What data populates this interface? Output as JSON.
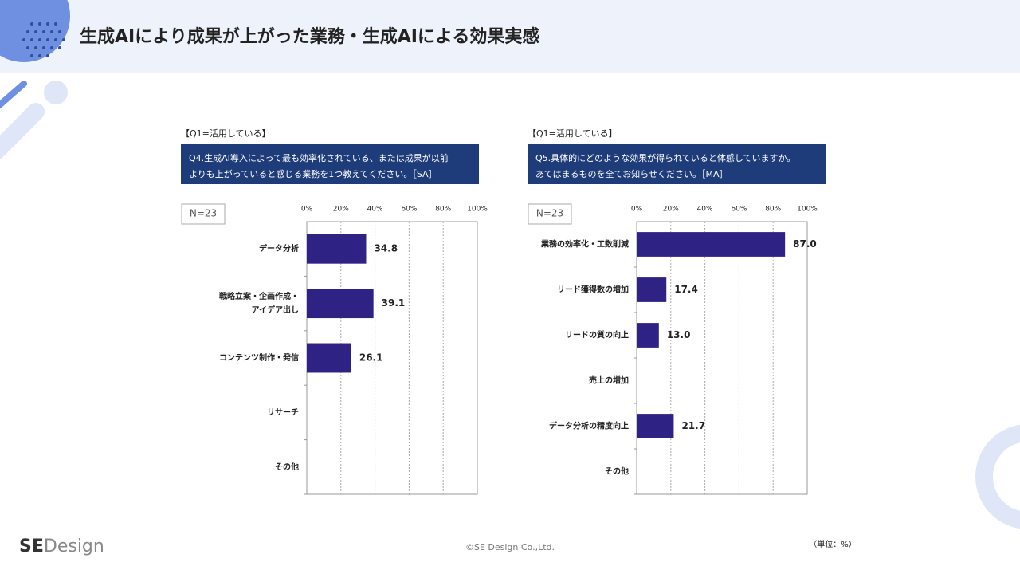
{
  "header": {
    "title": "生成AIにより成果が上がった業務・生成AIによる効果実感"
  },
  "footer": {
    "logo_bold": "SE",
    "logo_light": "Design",
    "copyright": "©SE Design Co.,Ltd.",
    "unit": "（単位：%）"
  },
  "chart_data": [
    {
      "type": "hbar",
      "subtitle": "【Q1=活用している】",
      "question": "Q4.生成AI導入によって最も効率化されている、または成果が以前\nよりも上がっていると感じる業務を1つ教えてください。［SA］",
      "sample": "N=23",
      "categories": [
        "データ分析",
        "戦略立案・企画作成・\nアイデア出し",
        "コンテンツ制作・発信",
        "リサーチ",
        "その他"
      ],
      "values": [
        34.8,
        39.1,
        26.1,
        null,
        null
      ],
      "color": "#2e2384",
      "xlim": [
        0,
        100
      ],
      "xticks": [
        {
          "value": 0,
          "label": "0%"
        },
        {
          "value": 20,
          "label": "20%"
        },
        {
          "value": 40,
          "label": "40%"
        },
        {
          "value": 60,
          "label": "60%"
        },
        {
          "value": 80,
          "label": "80%"
        },
        {
          "value": 100,
          "label": "100%"
        }
      ],
      "grid": true
    },
    {
      "type": "hbar",
      "subtitle": "【Q1=活用している】",
      "question": "Q5.具体的にどのような効果が得られていると体感していますか。\nあてはまるものを全てお知らせください。［MA］",
      "sample": "N=23",
      "categories": [
        "業務の効率化・工数削減",
        "リード獲得数の増加",
        "リードの質の向上",
        "売上の増加",
        "データ分析の精度向上",
        "その他"
      ],
      "values": [
        87.0,
        17.4,
        13.0,
        null,
        21.7,
        null
      ],
      "value_labels": [
        "87.0",
        "17.4",
        "13.0",
        null,
        "21.7",
        null
      ],
      "color": "#2e2384",
      "xlim": [
        0,
        100
      ],
      "xticks": [
        {
          "value": 0,
          "label": "0%"
        },
        {
          "value": 20,
          "label": "20%"
        },
        {
          "value": 40,
          "label": "40%"
        },
        {
          "value": 60,
          "label": "60%"
        },
        {
          "value": 80,
          "label": "80%"
        },
        {
          "value": 100,
          "label": "100%"
        }
      ],
      "grid": true
    }
  ]
}
